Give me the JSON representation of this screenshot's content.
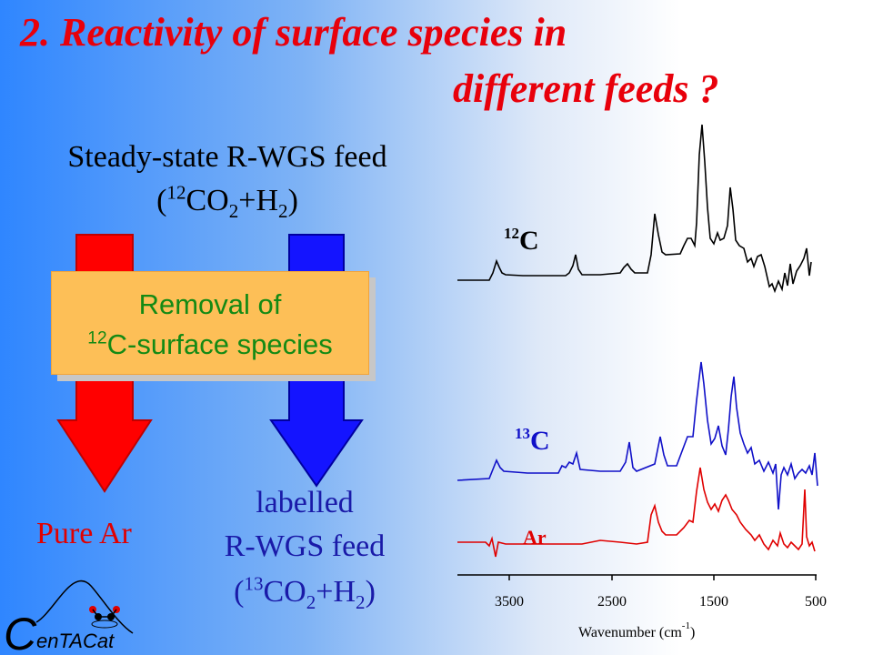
{
  "title": {
    "line1": "2. Reactivity of surface species in",
    "line2": "different feeds ?"
  },
  "left_panel": {
    "steady_state": "Steady-state R-WGS feed",
    "feed12": {
      "open": "(",
      "iso": "12",
      "co": "CO",
      "sub2": "2",
      "plus": "+H",
      "sub_h": "2",
      "close": ")"
    },
    "removal_line1": "Removal of",
    "removal_line2": {
      "iso": "12",
      "rest": "C-surface species"
    },
    "pure_ar": "Pure Ar",
    "labelled": "labelled",
    "rwgs_feed": "R-WGS feed",
    "feed13": {
      "open": "(",
      "iso": "13",
      "co": "CO",
      "sub2": "2",
      "plus": "+H",
      "sub_h": "2",
      "close": ")"
    }
  },
  "spectra": {
    "labels": [
      {
        "iso": "12",
        "letter": "C",
        "color": "#000000"
      },
      {
        "iso": "13",
        "letter": "C",
        "color": "#1010c8"
      },
      {
        "iso": "",
        "letter": "Ar",
        "color": "#e00000"
      }
    ],
    "x_ticks": [
      "3500",
      "2500",
      "1500",
      "500"
    ],
    "xlabel": "Wavenumber (cm",
    "xlabel_sup": "-1",
    "xlabel_close": ")"
  },
  "logo": {
    "initial": "C",
    "text": "enTACat"
  },
  "colors": {
    "title": "#e8000b",
    "red_arrow": "#ff0000",
    "blue_arrow": "#1414ff",
    "box": "#fdbf57",
    "box_text": "#148a14"
  }
}
